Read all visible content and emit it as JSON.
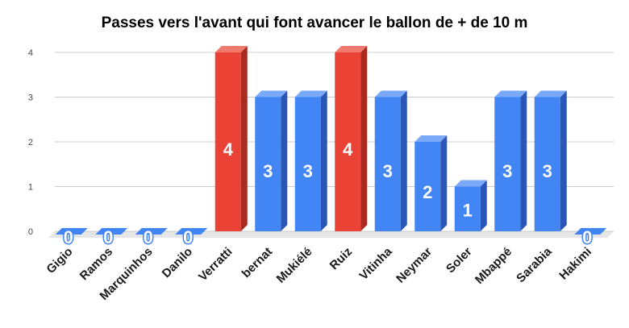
{
  "chart_data": {
    "type": "bar",
    "title": "Passes vers l'avant qui font avancer le ballon de + de 10 m",
    "xlabel": "",
    "ylabel": "",
    "ylim": [
      0,
      4
    ],
    "yticks": [
      0,
      1,
      2,
      3,
      4
    ],
    "grid": true,
    "legend": "none",
    "style": "3d",
    "categories": [
      "Gigio",
      "Ramos",
      "Marquinhos",
      "Danilo",
      "Verratti",
      "bernat",
      "Mukiélé",
      "Ruiz",
      "Vitinha",
      "Neymar",
      "Soler",
      "Mbappé",
      "Sarabia",
      "Hakimi"
    ],
    "values": [
      0,
      0,
      0,
      0,
      4,
      3,
      3,
      4,
      3,
      2,
      1,
      3,
      3,
      0
    ],
    "highlighted": [
      4,
      7
    ],
    "colors": {
      "bar": "#4285f4",
      "bar_side": "#2a56b8",
      "bar_top": "#7aa9f8",
      "highlight": "#ea4335",
      "highlight_side": "#a82a20",
      "highlight_top": "#f07a6e",
      "grid": "#cccccc",
      "floor": "#e6e6e6",
      "label": "#ffffff"
    }
  }
}
